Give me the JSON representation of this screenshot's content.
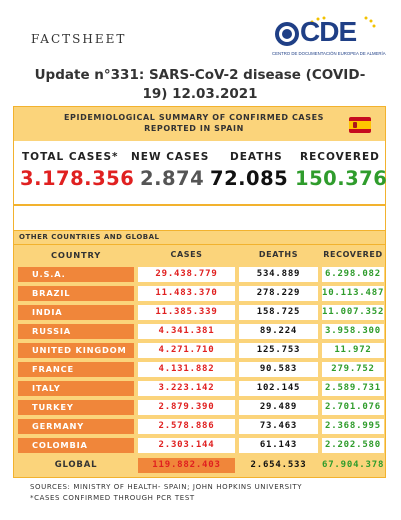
{
  "header": {
    "factsheet": "FACTSHEET",
    "logo_text": "CDE",
    "logo_sub": "CENTRO DE DOCUMENTACIÓN EUROPEA DE ALMERÍA",
    "headline_line1": "Update n°331: SARS-CoV-2 disease (COVID-",
    "headline_line2": "19) 12.03.2021"
  },
  "spain": {
    "title_line1": "EPIDEMIOLOGICAL SUMMARY OF CONFIRMED CASES",
    "title_line2": "REPORTED IN SPAIN",
    "flag_icon": "spain-flag-icon",
    "stats": [
      {
        "label": "TOTAL CASES*",
        "value": "3.178.356",
        "color": "#e02020"
      },
      {
        "label": "NEW CASES",
        "value": "2.874",
        "color": "#555555"
      },
      {
        "label": "DEATHS",
        "value": "72.085",
        "color": "#111111"
      },
      {
        "label": "RECOVERED",
        "value": "150.376",
        "color": "#2f9c2c"
      }
    ]
  },
  "global": {
    "section_label": "OTHER COUNTRIES AND GLOBAL",
    "headers": {
      "country": "COUNTRY",
      "cases": "CASES",
      "deaths": "DEATHS",
      "recovered": "RECOVERED"
    },
    "rows": [
      {
        "country": "U.S.A.",
        "cases": "29.438.779",
        "deaths": "534.889",
        "recovered": "6.298.082"
      },
      {
        "country": "BRAZIL",
        "cases": "11.483.370",
        "deaths": "278.229",
        "recovered": "10.113.487"
      },
      {
        "country": "INDIA",
        "cases": "11.385.339",
        "deaths": "158.725",
        "recovered": "11.007.352"
      },
      {
        "country": "RUSSIA",
        "cases": "4.341.381",
        "deaths": "89.224",
        "recovered": "3.958.300"
      },
      {
        "country": "UNITED KINGDOM",
        "cases": "4.271.710",
        "deaths": "125.753",
        "recovered": "11.972"
      },
      {
        "country": "FRANCE",
        "cases": "4.131.882",
        "deaths": "90.583",
        "recovered": "279.752"
      },
      {
        "country": "ITALY",
        "cases": "3.223.142",
        "deaths": "102.145",
        "recovered": "2.589.731"
      },
      {
        "country": "TURKEY",
        "cases": "2.879.390",
        "deaths": "29.489",
        "recovered": "2.701.076"
      },
      {
        "country": "GERMANY",
        "cases": "2.578.886",
        "deaths": "73.463",
        "recovered": "2.368.995"
      },
      {
        "country": "COLOMBIA",
        "cases": "2.303.144",
        "deaths": "61.143",
        "recovered": "2.202.580"
      }
    ],
    "total": {
      "country": "GLOBAL",
      "cases": "119.882.403",
      "deaths": "2.654.533",
      "recovered": "67.904.378"
    }
  },
  "footer": {
    "sources": "SOURCES: MINISTRY OF HEALTH- SPAIN; JOHN HOPKINS UNIVERSITY",
    "note": "*CASES CONFIRMED THROUGH PCR TEST"
  }
}
